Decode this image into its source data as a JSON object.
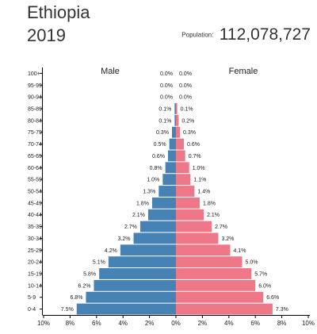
{
  "header": {
    "country": "Ethiopia",
    "year": "2019",
    "population_label": "Population:",
    "population_value": "112,078,727"
  },
  "colors": {
    "male": "#4682b4",
    "female": "#ee7788",
    "axis": "#000000"
  },
  "chart_data": {
    "type": "bar",
    "orientation": "horizontal",
    "subtype": "population-pyramid",
    "categories": [
      "100+",
      "95-99",
      "90-94",
      "85-89",
      "80-84",
      "75-79",
      "70-74",
      "65-69",
      "60-64",
      "55-59",
      "50-54",
      "45-49",
      "40-44",
      "35-39",
      "30-34",
      "25-29",
      "20-24",
      "15-19",
      "10-14",
      "5-9",
      "0-4"
    ],
    "series": [
      {
        "name": "Male",
        "values": [
          0.0,
          0.0,
          0.0,
          0.1,
          0.1,
          0.3,
          0.5,
          0.6,
          0.8,
          1.0,
          1.3,
          1.8,
          2.1,
          2.7,
          3.2,
          4.2,
          5.1,
          5.8,
          6.2,
          6.8,
          7.5
        ]
      },
      {
        "name": "Female",
        "values": [
          0.0,
          0.0,
          0.0,
          0.1,
          0.2,
          0.3,
          0.6,
          0.7,
          1.0,
          1.1,
          1.4,
          1.8,
          2.1,
          2.7,
          3.2,
          4.1,
          5.0,
          5.7,
          6.0,
          6.6,
          7.3
        ]
      }
    ],
    "value_labels": {
      "male": [
        "0.0%",
        "0.0%",
        "0.0%",
        "0.1%",
        "0.1%",
        "0.3%",
        "0.5%",
        "0.6%",
        "0.8%",
        "1.0%",
        "1.3%",
        "1.8%",
        "2.1%",
        "2.7%",
        "3.2%",
        "4.2%",
        "5.1%",
        "5.8%",
        "6.2%",
        "6.8%",
        "7.5%"
      ],
      "female": [
        "0.0%",
        "0.0%",
        "0.0%",
        "0.1%",
        "0.2%",
        "0.3%",
        "0.6%",
        "0.7%",
        "1.0%",
        "1.1%",
        "1.4%",
        "1.8%",
        "2.1%",
        "2.7%",
        "3.2%",
        "4.1%",
        "5.0%",
        "5.7%",
        "6.0%",
        "6.6%",
        "7.3%"
      ]
    },
    "x_ticks": [
      "10%",
      "8%",
      "6%",
      "4%",
      "2%",
      "0%",
      "2%",
      "4%",
      "6%",
      "8%",
      "10%"
    ],
    "xlim": [
      -10,
      10
    ],
    "grid": false,
    "legend": "inline-top"
  }
}
